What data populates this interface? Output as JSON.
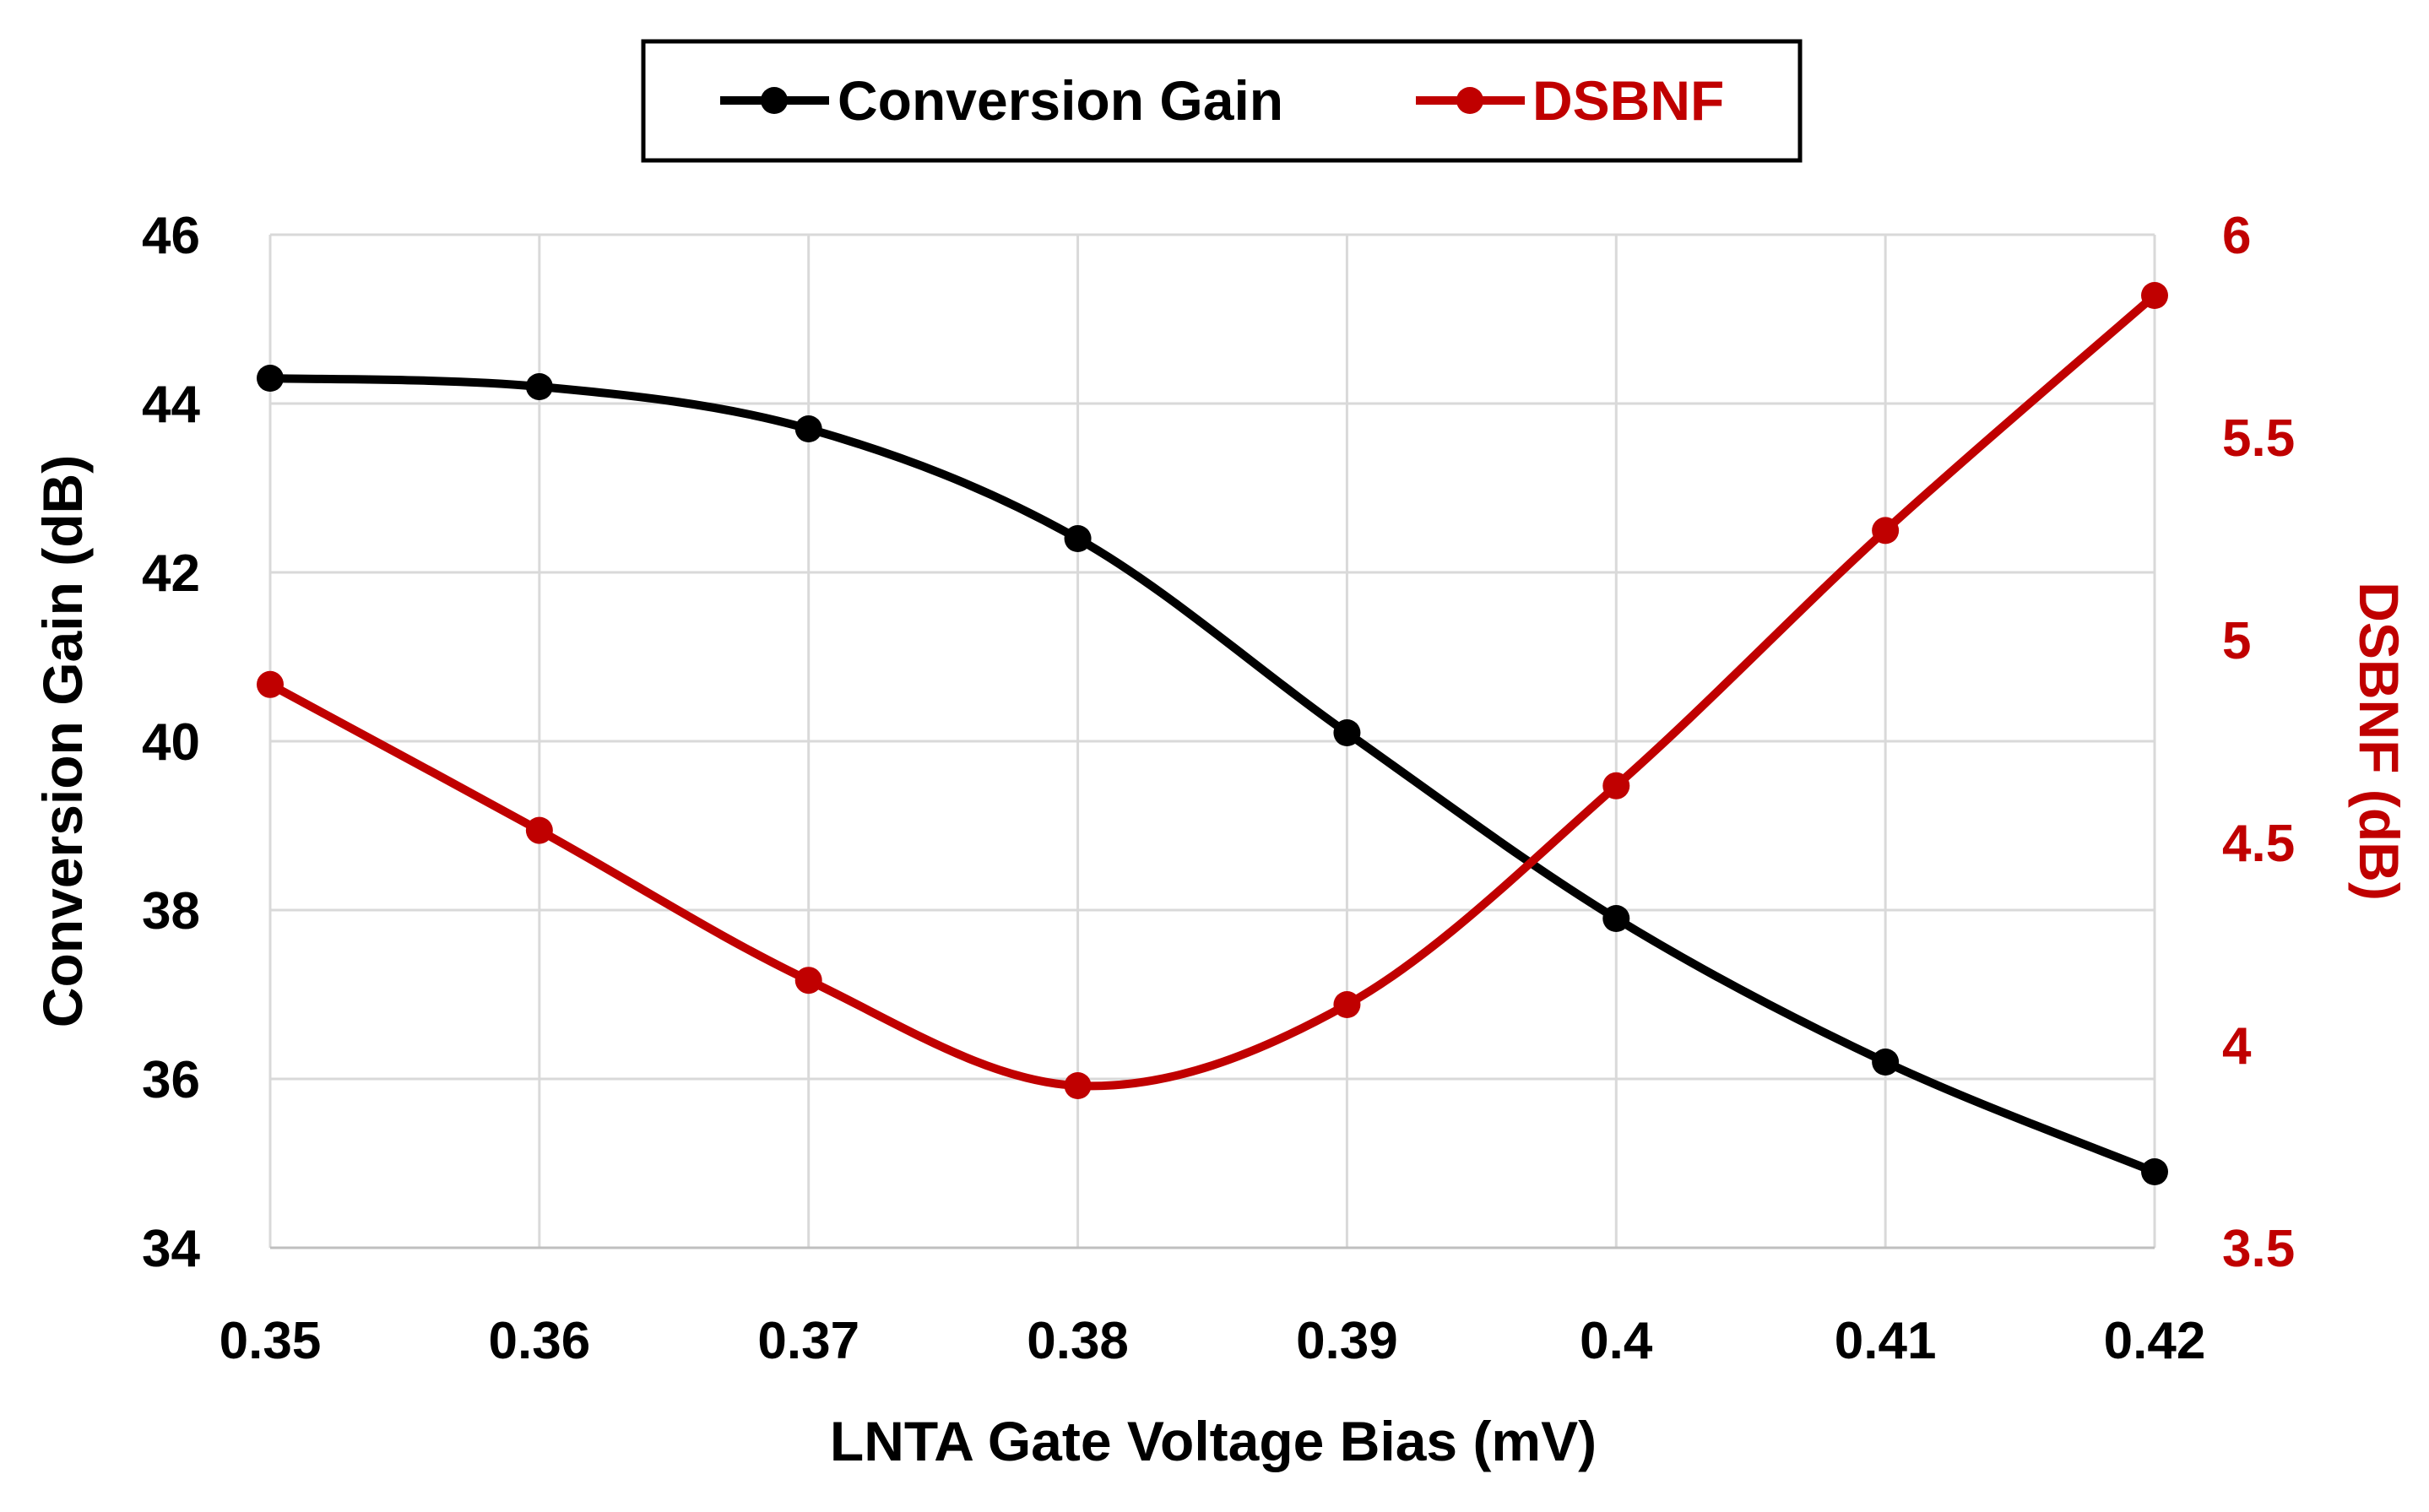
{
  "chart_data": {
    "type": "line",
    "x": [
      0.35,
      0.36,
      0.37,
      0.38,
      0.39,
      0.4,
      0.41,
      0.42
    ],
    "x_tick_labels": [
      "0.35",
      "0.36",
      "0.37",
      "0.38",
      "0.39",
      "0.4",
      "0.41",
      "0.42"
    ],
    "xlabel": "LNTA Gate Voltage Bias (mV)",
    "ylabel": "Conversion Gain (dB)",
    "y2label": "DSBNF (dB)",
    "ylim": [
      34,
      46
    ],
    "y_ticks": [
      34,
      36,
      38,
      40,
      42,
      44,
      46
    ],
    "y2lim": [
      3.5,
      6
    ],
    "y2_ticks": [
      "3.5",
      "4",
      "4.5",
      "5",
      "5.5",
      "6"
    ],
    "grid": true,
    "smooth": true,
    "legend": {
      "position": "top-center",
      "boxed": true
    },
    "series": [
      {
        "name": "Conversion Gain",
        "axis": "left",
        "color": "#000000",
        "values": [
          44.3,
          44.2,
          43.7,
          42.4,
          40.1,
          37.9,
          36.2,
          34.9
        ]
      },
      {
        "name": "DSBNF",
        "axis": "right",
        "color": "#c00000",
        "values": [
          4.89,
          4.53,
          4.16,
          3.9,
          4.1,
          4.64,
          5.27,
          5.85
        ]
      }
    ]
  }
}
